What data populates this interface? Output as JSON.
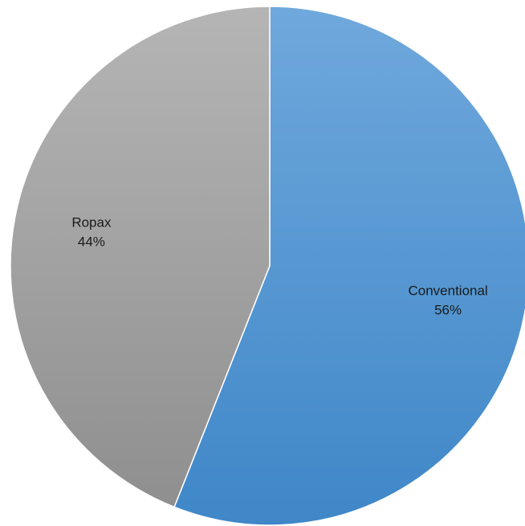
{
  "chart_data": {
    "type": "pie",
    "title": "",
    "slices": [
      {
        "label": "Conventional",
        "value": 56,
        "value_label": "56%",
        "color": "#5b9bd5"
      },
      {
        "label": "Ropax",
        "value": 44,
        "value_label": "44%",
        "color": "#a5a5a5"
      }
    ],
    "start_angle_deg": 0,
    "direction": "clockwise",
    "legend": "none",
    "data_labels": "inside"
  }
}
